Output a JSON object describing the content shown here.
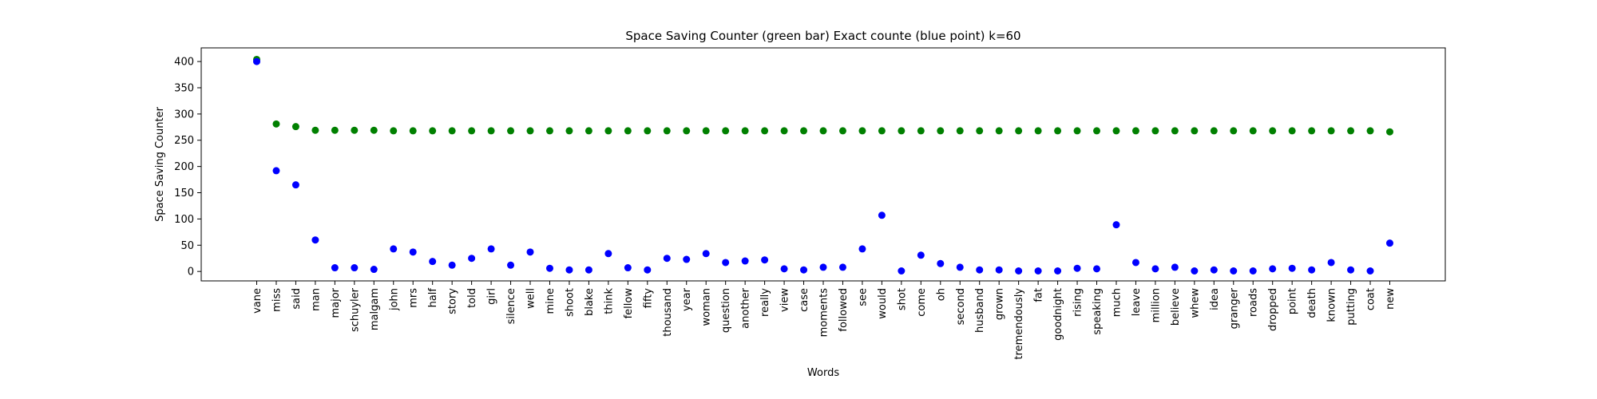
{
  "chart_data": {
    "type": "scatter",
    "title": "Space Saving Counter (green bar)  Exact counte (blue point) k=60",
    "xlabel": "Words",
    "ylabel": "Space Saving Counter",
    "ylim": [
      -18,
      426
    ],
    "yticks": [
      0,
      50,
      100,
      150,
      200,
      250,
      300,
      350,
      400
    ],
    "grid": false,
    "categories": [
      "vane",
      "miss",
      "said",
      "man",
      "major",
      "schuyler",
      "malgam",
      "john",
      "mrs",
      "half",
      "story",
      "told",
      "girl",
      "silence",
      "well",
      "mine",
      "shoot",
      "blake",
      "think",
      "fellow",
      "fifty",
      "thousand",
      "year",
      "woman",
      "question",
      "another",
      "really",
      "view",
      "case",
      "moments",
      "followed",
      "see",
      "would",
      "shot",
      "come",
      "oh",
      "second",
      "husband",
      "grown",
      "tremendously",
      "fat",
      "goodnight",
      "rising",
      "speaking",
      "much",
      "leave",
      "million",
      "believe",
      "whew",
      "idea",
      "granger",
      "roads",
      "dropped",
      "point",
      "death",
      "known",
      "putting",
      "coat",
      "new"
    ],
    "series": [
      {
        "color": "#008000",
        "values": [
          404,
          281,
          276,
          269,
          269,
          269,
          269,
          268,
          268,
          268,
          268,
          268,
          268,
          268,
          268,
          268,
          268,
          268,
          268,
          268,
          268,
          268,
          268,
          268,
          268,
          268,
          268,
          268,
          268,
          268,
          268,
          268,
          268,
          268,
          268,
          268,
          268,
          268,
          268,
          268,
          268,
          268,
          268,
          268,
          268,
          268,
          268,
          268,
          268,
          268,
          268,
          268,
          268,
          268,
          268,
          268,
          268,
          268,
          266
        ]
      },
      {
        "color": "#0000ff",
        "values": [
          400,
          192,
          165,
          60,
          7,
          7,
          4,
          43,
          37,
          19,
          12,
          25,
          43,
          12,
          37,
          6,
          3,
          3,
          34,
          7,
          3,
          25,
          23,
          34,
          17,
          20,
          22,
          5,
          3,
          8,
          8,
          43,
          107,
          1,
          31,
          15,
          8,
          3,
          3,
          1,
          1,
          1,
          6,
          5,
          89,
          17,
          5,
          8,
          1,
          3,
          1,
          1,
          5,
          6,
          3,
          17,
          3,
          1,
          54
        ]
      }
    ]
  }
}
